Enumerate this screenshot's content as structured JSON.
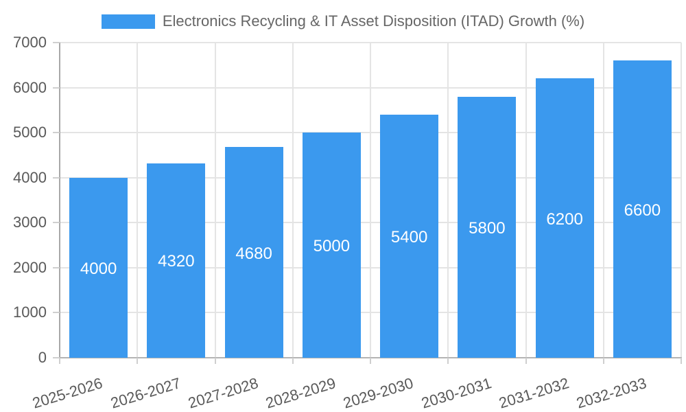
{
  "legend": {
    "label": "Electronics Recycling & IT Asset Disposition (ITAD) Growth (%)",
    "swatch_color": "#3b99ee"
  },
  "chart_data": {
    "type": "bar",
    "title": "Electronics Recycling & IT Asset Disposition (ITAD) Growth (%)",
    "categories": [
      "2025-2026",
      "2026-2027",
      "2027-2028",
      "2028-2029",
      "2029-2030",
      "2030-2031",
      "2031-2032",
      "2032-2033"
    ],
    "values": [
      4000,
      4320,
      4680,
      5000,
      5400,
      5800,
      6200,
      6600
    ],
    "value_labels": [
      "4000",
      "4320",
      "4680",
      "5000",
      "5400",
      "5800",
      "6200",
      "6600"
    ],
    "xlabel": "",
    "ylabel": "",
    "ylim": [
      0,
      7000
    ],
    "yticks": [
      0,
      1000,
      2000,
      3000,
      4000,
      5000,
      6000,
      7000
    ],
    "ytick_labels": [
      "0",
      "1000",
      "2000",
      "3000",
      "4000",
      "5000",
      "6000",
      "7000"
    ],
    "grid": true,
    "legend_position": "top",
    "bar_color": "#3b99ee",
    "bar_label_color": "#ffffff"
  },
  "colors": {
    "background": "#ffffff",
    "grid": "#e4e4e4",
    "y_axis_line": "#a8a8a8",
    "x_axis_line": "#b3b3b3",
    "tick_mark": "#cfcfcf",
    "tick_label": "#595959",
    "legend_text": "#666666"
  }
}
